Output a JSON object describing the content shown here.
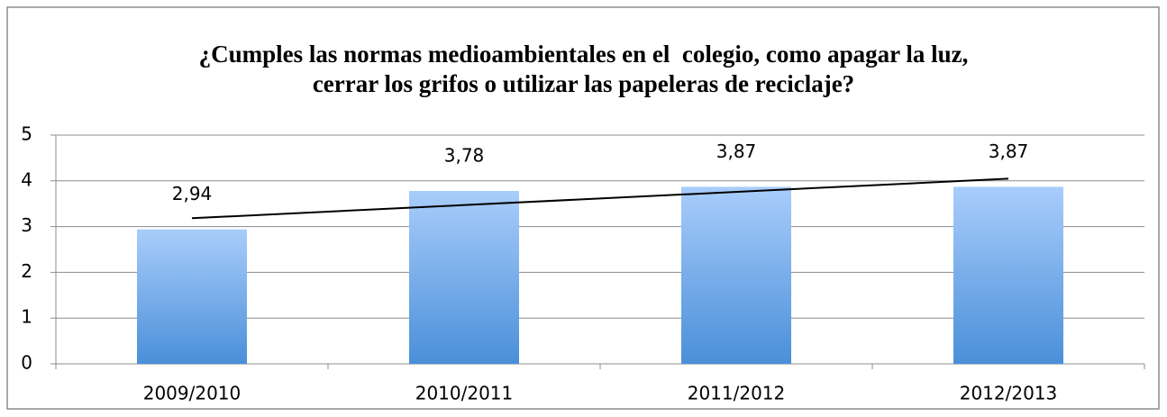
{
  "chart_data": {
    "type": "bar",
    "title": "¿Cumples las normas medioambientales en el  colegio, como apagar la luz, cerrar los grifos o utilizar las papeleras de reciclaje?",
    "categories": [
      "2009/2010",
      "2010/2011",
      "2011/2012",
      "2012/2013"
    ],
    "values": [
      2.94,
      3.78,
      3.87,
      3.87
    ],
    "value_labels": [
      "2,94",
      "3,78",
      "3,87",
      "3,87"
    ],
    "color": "#5b9be0",
    "ylim": [
      0,
      5
    ],
    "yticks": [
      0,
      1,
      2,
      3,
      4,
      5
    ],
    "grid": true,
    "trendline": "linear"
  }
}
